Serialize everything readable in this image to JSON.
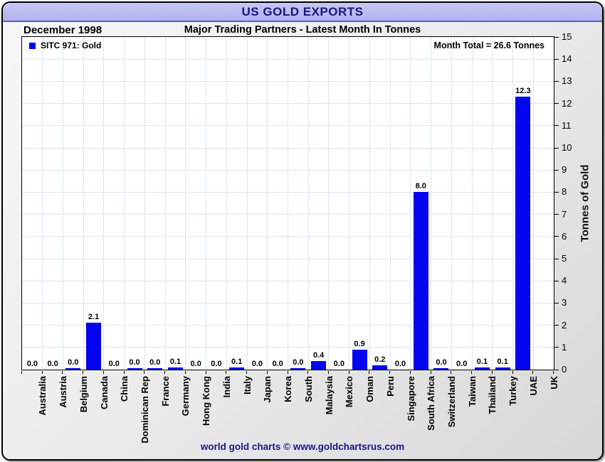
{
  "window_title": "US GOLD EXPORTS",
  "header": {
    "period": "December 1998",
    "subtitle": "Major Trading Partners - Latest Month In Tonnes"
  },
  "legend": {
    "series_label": "SITC 971: Gold"
  },
  "month_total_label": "Month Total = 26.6 Tonnes",
  "y_axis": {
    "title": "Tonnes of Gold",
    "min": 0,
    "max": 15,
    "step": 1
  },
  "footer": {
    "credit": "world gold charts © www.goldchartsrus.com"
  },
  "colors": {
    "bar": "#0404ee",
    "titlebar_bg": "#bcbcf2",
    "titlebar_border": "#5b5bd6",
    "title_text": "#16167e",
    "grid": "#dbe7f5",
    "plot_bg": "#ffffff",
    "axis": "#000000",
    "footer_text": "#16168c"
  },
  "chart_data": {
    "type": "bar",
    "title": "US GOLD EXPORTS",
    "period": "December 1998",
    "subtitle": "Major Trading Partners - Latest Month In Tonnes",
    "series_name": "SITC 971: Gold",
    "month_total_tonnes": 26.6,
    "ylabel": "Tonnes of Gold",
    "ylim": [
      0,
      15
    ],
    "y_tick_step": 1,
    "grid": true,
    "legend_position": "top-left",
    "bar_color": "#0404ee",
    "categories": [
      "Australia",
      "Austria",
      "Belgium",
      "Canada",
      "China",
      "Dominican Rep",
      "France",
      "Germany",
      "Hong Kong",
      "India",
      "Italy",
      "Japan",
      "Korea",
      "South",
      "Malaysia",
      "Mexico",
      "Oman",
      "Peru",
      "Singapore",
      "South Africa",
      "Switzerland",
      "Taiwan",
      "Thailand",
      "Turkey",
      "UAE",
      "UK"
    ],
    "values": [
      0.0,
      0.0,
      0.0,
      2.1,
      0.0,
      0.0,
      0.0,
      0.1,
      0.0,
      0.0,
      0.1,
      0.0,
      0.0,
      0.0,
      0.4,
      0.0,
      0.9,
      0.2,
      0.0,
      8.0,
      0.0,
      0.0,
      0.1,
      0.1,
      12.3,
      null
    ],
    "value_labels": [
      "0.0",
      "0.0",
      "0.0",
      "2.1",
      "0.0",
      "0.0",
      "0.0",
      "0.1",
      "0.0",
      "0.0",
      "0.1",
      "0.0",
      "0.0",
      "0.0",
      "0.4",
      "0.0",
      "0.9",
      "0.2",
      "0.0",
      "8.0",
      "0.0",
      "0.0",
      "0.1",
      "0.1",
      "12.3",
      ""
    ],
    "tiny_bar_categories": [
      "Belgium",
      "Dominican Rep",
      "France",
      "South",
      "Switzerland"
    ]
  }
}
